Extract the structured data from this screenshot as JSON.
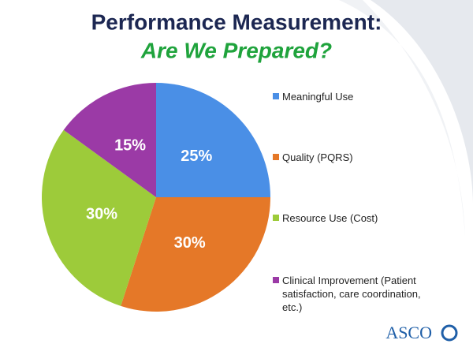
{
  "chart_data": {
    "type": "pie",
    "title": "Performance Measurement:",
    "subtitle": "Are We Prepared?",
    "categories": [
      "Meaningful Use",
      "Quality (PQRS)",
      "Resource Use (Cost)",
      "Clinical Improvement (Patient satisfaction, care coordination, etc.)"
    ],
    "values": [
      25,
      30,
      30,
      15
    ],
    "value_labels": [
      "25%",
      "30%",
      "30%",
      "15%"
    ],
    "colors": [
      "#4a8fe6",
      "#e57828",
      "#9dcb3a",
      "#9b3aa6"
    ],
    "legend": "right"
  },
  "logo": "ASCO"
}
